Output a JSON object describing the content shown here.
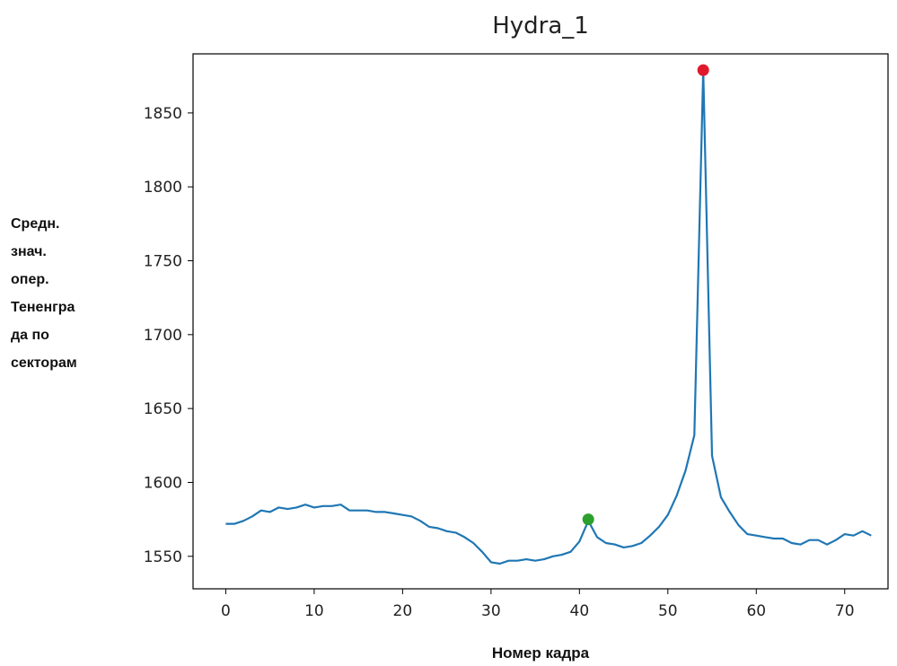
{
  "chart_data": {
    "type": "line",
    "title": "Hydra_1",
    "xlabel": "Номер кадра",
    "ylabel_lines": [
      "Средн.",
      "знач.",
      "опер.",
      "Тененгра",
      "да по",
      "секторам"
    ],
    "xlim": [
      -3.7,
      74.9
    ],
    "ylim": [
      1528,
      1890
    ],
    "xticks": [
      0,
      10,
      20,
      30,
      40,
      50,
      60,
      70
    ],
    "yticks": [
      1550,
      1600,
      1650,
      1700,
      1750,
      1800,
      1850
    ],
    "grid": false,
    "series": [
      {
        "color": "#1f77b4",
        "x": [
          0,
          1,
          2,
          3,
          4,
          5,
          6,
          7,
          8,
          9,
          10,
          11,
          12,
          13,
          14,
          15,
          16,
          17,
          18,
          19,
          20,
          21,
          22,
          23,
          24,
          25,
          26,
          27,
          28,
          29,
          30,
          31,
          32,
          33,
          34,
          35,
          36,
          37,
          38,
          39,
          40,
          41,
          42,
          43,
          44,
          45,
          46,
          47,
          48,
          49,
          50,
          51,
          52,
          53,
          54,
          55,
          56,
          57,
          58,
          59,
          60,
          61,
          62,
          63,
          64,
          65,
          66,
          67,
          68,
          69,
          70,
          71,
          72,
          73
        ],
        "y": [
          1572,
          1572,
          1574,
          1577,
          1581,
          1580,
          1583,
          1582,
          1583,
          1585,
          1583,
          1584,
          1584,
          1585,
          1581,
          1581,
          1581,
          1580,
          1580,
          1579,
          1578,
          1577,
          1574,
          1570,
          1569,
          1567,
          1566,
          1563,
          1559,
          1553,
          1546,
          1545,
          1547,
          1547,
          1548,
          1547,
          1548,
          1550,
          1551,
          1553,
          1560,
          1574,
          1563,
          1559,
          1558,
          1556,
          1557,
          1559,
          1564,
          1570,
          1578,
          1591,
          1608,
          1632,
          1879,
          1618,
          1590,
          1580,
          1571,
          1565,
          1564,
          1563,
          1562,
          1562,
          1559,
          1558,
          1561,
          1561,
          1558,
          1561,
          1565,
          1564,
          1567,
          1564
        ]
      }
    ],
    "markers": [
      {
        "x": 41,
        "y": 1575,
        "color": "#2ca02c"
      },
      {
        "x": 54,
        "y": 1879,
        "color": "#e0192c"
      }
    ]
  }
}
